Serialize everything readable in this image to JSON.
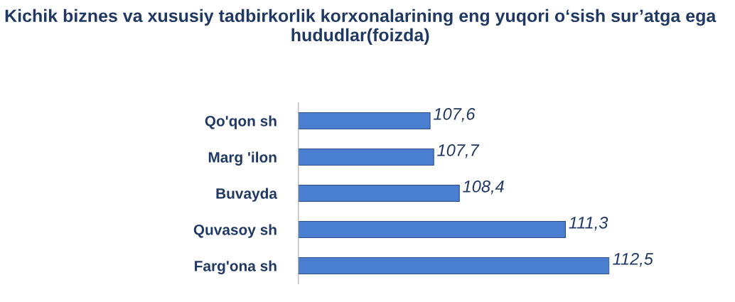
{
  "chart_data": {
    "type": "bar",
    "orientation": "horizontal",
    "title": "Kichik biznes va xususiy tadbirkorlik korxonalarining eng yuqori o‘sish sur’atga ega hududlar(foizda)",
    "categories": [
      "Qo'qon sh",
      "Marg 'ilon",
      "Buvayda",
      "Quvasoy sh",
      "Farg'ona sh"
    ],
    "values": [
      107.6,
      107.7,
      108.4,
      111.3,
      112.5
    ],
    "value_labels": [
      "107,6",
      "107,7",
      "108,4",
      "111,3",
      "112,5"
    ],
    "color": "#4a7fd0",
    "xlim": [
      104,
      112.5
    ],
    "tick_labels": "y",
    "grid": false,
    "legend": false
  }
}
